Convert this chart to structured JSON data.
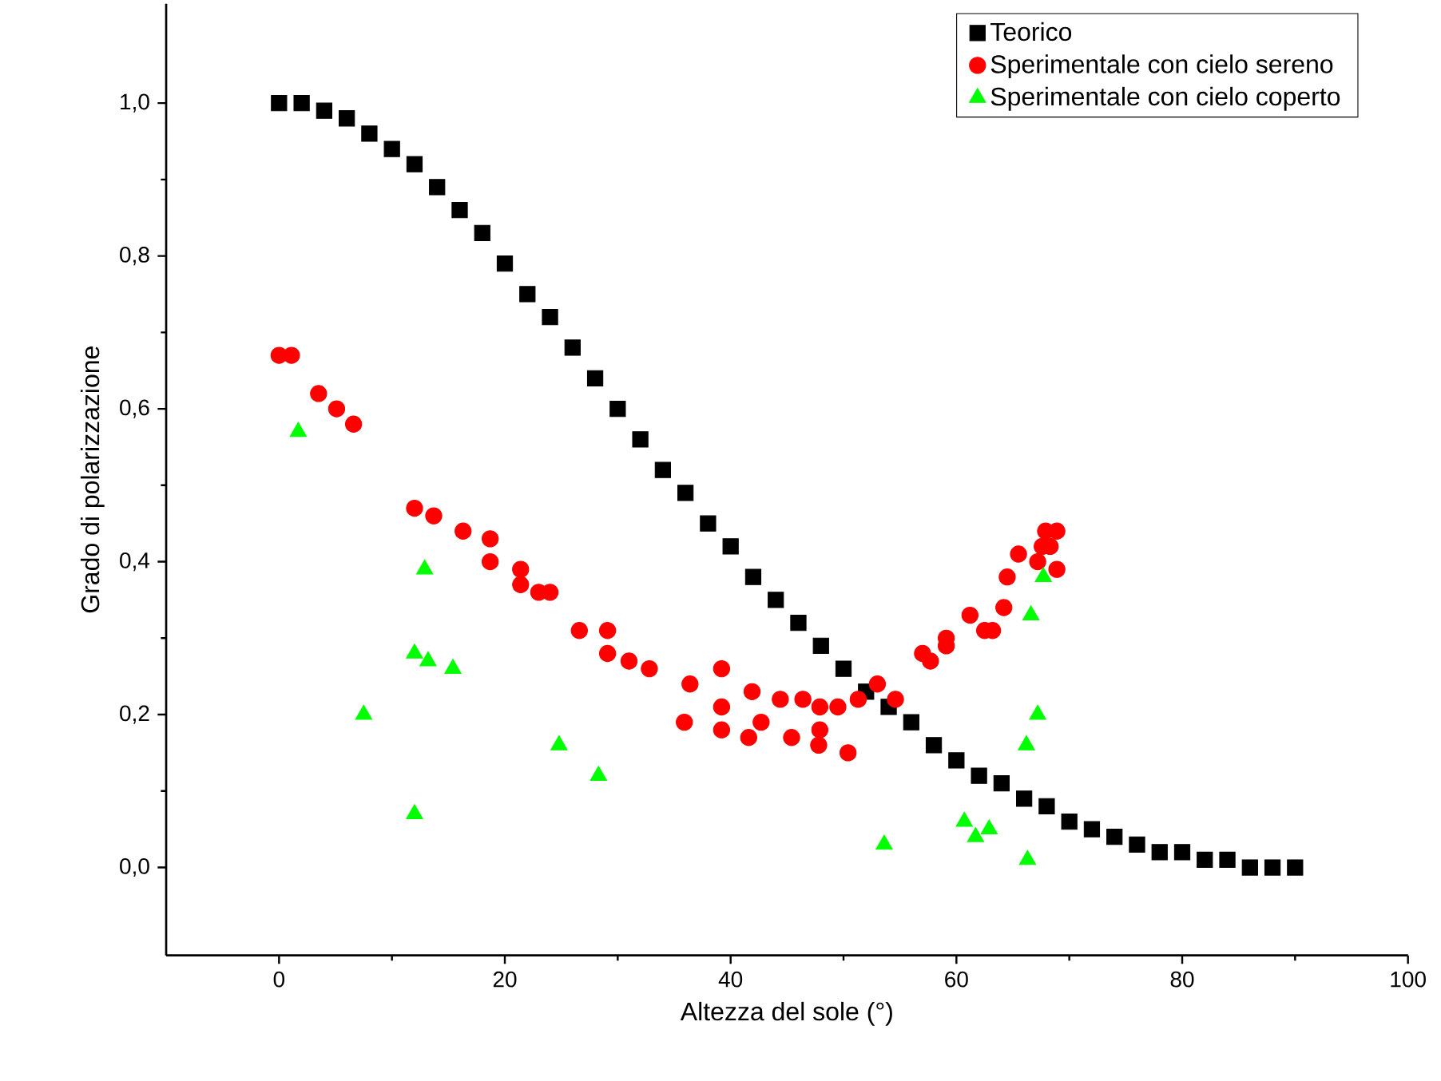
{
  "chart_data": {
    "type": "scatter",
    "xlabel": "Altezza del sole (°)",
    "ylabel": "Grado di polarizzazione",
    "xlim": [
      -10,
      100
    ],
    "xticks": [
      0,
      20,
      40,
      60,
      80,
      100
    ],
    "ylim": [
      -0.115,
      1.13
    ],
    "yticks": [
      {
        "value": 0,
        "label": "0,0"
      },
      {
        "value": 0.2,
        "label": "0,2"
      },
      {
        "value": 0.4,
        "label": "0,4"
      },
      {
        "value": 0.6,
        "label": "0,6"
      },
      {
        "value": 0.8,
        "label": "0,8"
      },
      {
        "value": 1,
        "label": "1,0"
      }
    ],
    "legend": "top right",
    "grid": false,
    "series": [
      {
        "name": "Teorico",
        "color": "#000000",
        "marker": "square",
        "x": [
          0,
          2,
          4,
          6,
          8,
          10,
          12,
          14,
          16,
          18,
          20,
          22,
          24,
          26,
          28,
          30,
          32,
          34,
          36,
          38,
          40,
          42,
          44,
          46,
          48,
          50,
          52,
          54,
          56,
          58,
          60,
          62,
          64,
          66,
          68,
          70,
          72,
          74,
          76,
          78,
          80,
          82,
          84,
          86,
          88,
          90
        ],
        "values": [
          1.0,
          1.0,
          0.99,
          0.98,
          0.96,
          0.94,
          0.92,
          0.89,
          0.86,
          0.83,
          0.79,
          0.75,
          0.72,
          0.68,
          0.64,
          0.6,
          0.56,
          0.52,
          0.49,
          0.45,
          0.42,
          0.38,
          0.35,
          0.32,
          0.29,
          0.26,
          0.23,
          0.21,
          0.19,
          0.16,
          0.14,
          0.12,
          0.11,
          0.09,
          0.08,
          0.06,
          0.05,
          0.04,
          0.03,
          0.02,
          0.02,
          0.01,
          0.01,
          0.0,
          0.0,
          0.0
        ]
      },
      {
        "name": "Sperimentale con cielo sereno",
        "color": "#ff0000",
        "marker": "circle",
        "x": [
          0,
          1.1,
          3.5,
          5.1,
          6.6,
          12,
          13.7,
          16.3,
          18.7,
          18.7,
          21.4,
          21.4,
          23,
          24,
          26.6,
          29.1,
          29.1,
          31,
          32.8,
          36.4,
          39.2,
          35.9,
          39.2,
          39.2,
          41.9,
          42.7,
          41.6,
          44.4,
          45.4,
          46.4,
          47.9,
          47.9,
          47.8,
          49.5,
          50.4,
          51.3,
          53,
          54.6,
          57,
          57.7,
          59.1,
          59.1,
          61.2,
          62.5,
          63.2,
          64.2,
          64.5,
          65.5,
          67.2,
          67.9,
          68.9,
          68.3,
          68.9,
          67.6
        ],
        "values": [
          0.67,
          0.67,
          0.62,
          0.6,
          0.58,
          0.47,
          0.46,
          0.44,
          0.43,
          0.4,
          0.39,
          0.37,
          0.36,
          0.36,
          0.31,
          0.31,
          0.28,
          0.27,
          0.26,
          0.24,
          0.26,
          0.19,
          0.21,
          0.18,
          0.23,
          0.19,
          0.17,
          0.22,
          0.17,
          0.22,
          0.21,
          0.18,
          0.16,
          0.21,
          0.15,
          0.22,
          0.24,
          0.22,
          0.28,
          0.27,
          0.3,
          0.29,
          0.33,
          0.31,
          0.31,
          0.34,
          0.38,
          0.41,
          0.4,
          0.44,
          0.44,
          0.42,
          0.39,
          0.42
        ]
      },
      {
        "name": "Sperimentale con cielo coperto",
        "color": "#00ff00",
        "marker": "triangle",
        "x": [
          1.7,
          7.5,
          12,
          12,
          12.9,
          13.2,
          15.4,
          24.8,
          28.3,
          53.6,
          60.7,
          61.7,
          62.9,
          66.3,
          66.2,
          67.2,
          66.6,
          67.7
        ],
        "values": [
          0.57,
          0.2,
          0.07,
          0.28,
          0.39,
          0.27,
          0.26,
          0.16,
          0.12,
          0.03,
          0.06,
          0.04,
          0.05,
          0.01,
          0.16,
          0.2,
          0.33,
          0.38
        ]
      }
    ]
  }
}
